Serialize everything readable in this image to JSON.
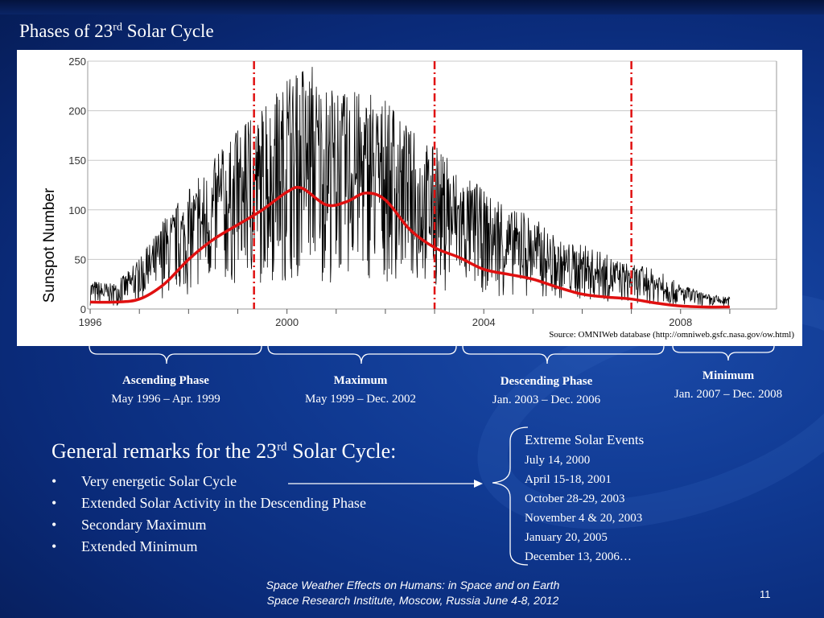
{
  "slide": {
    "title_prefix": "Phases of 23",
    "title_sup": "rd",
    "title_suffix": " Solar Cycle",
    "source": "Source: OMNIWeb database (http://omniweb.gsfc.nasa.gov/ow.html)",
    "page_number": "11"
  },
  "chart_data": {
    "type": "line",
    "ylabel": "Sunspot Number",
    "ylim": [
      0,
      250
    ],
    "xlim": [
      1995.95,
      2009.95
    ],
    "yticks": [
      0,
      50,
      100,
      150,
      200,
      250
    ],
    "ytick_labels": [
      "0",
      "50",
      "100",
      "150",
      "200",
      "250"
    ],
    "xticks": [
      1996,
      2000,
      2004,
      2008
    ],
    "xtick_labels": [
      "1996",
      "2000",
      "2004",
      "2008"
    ],
    "grid": "horizontal",
    "phase_boundaries": [
      1999.33,
      2003.0,
      2007.0
    ],
    "series": [
      {
        "name": "",
        "color": "#e01010",
        "style": "smoothed",
        "x": [
          1996.0,
          1996.5,
          1997.0,
          1997.5,
          1998.0,
          1998.5,
          1999.0,
          1999.5,
          2000.0,
          2000.3,
          2000.8,
          2001.2,
          2001.6,
          2002.0,
          2002.5,
          2003.0,
          2003.5,
          2004.0,
          2004.5,
          2005.0,
          2005.5,
          2006.0,
          2006.5,
          2007.0,
          2007.5,
          2008.0,
          2008.5,
          2009.0
        ],
        "values": [
          7,
          7,
          10,
          25,
          50,
          70,
          85,
          100,
          118,
          122,
          105,
          108,
          117,
          110,
          80,
          62,
          52,
          40,
          35,
          30,
          22,
          15,
          12,
          10,
          6,
          3,
          2,
          2
        ]
      },
      {
        "name": "",
        "color": "#000000",
        "style": "daily",
        "x_start": 1996.0,
        "x_end": 2009.0,
        "envelope_x": [
          1996.0,
          1996.5,
          1997.0,
          1997.5,
          1998.0,
          1998.5,
          1999.0,
          1999.5,
          2000.0,
          2000.5,
          2001.0,
          2001.5,
          2002.0,
          2002.5,
          2003.0,
          2003.5,
          2004.0,
          2004.5,
          2005.0,
          2005.5,
          2006.0,
          2006.5,
          2007.0,
          2007.5,
          2008.0,
          2008.5,
          2009.0
        ],
        "envelope_max": [
          30,
          25,
          50,
          90,
          120,
          150,
          180,
          200,
          230,
          245,
          215,
          220,
          210,
          180,
          165,
          140,
          120,
          100,
          95,
          70,
          65,
          55,
          45,
          40,
          25,
          15,
          12
        ]
      }
    ]
  },
  "phases": [
    {
      "name": "Ascending Phase",
      "dates": "May 1996 – Apr. 1999"
    },
    {
      "name": "Maximum",
      "dates": "May 1999 – Dec. 2002"
    },
    {
      "name": "Descending Phase",
      "dates": "Jan. 2003 – Dec. 2006"
    },
    {
      "name": "Minimum",
      "dates": "Jan. 2007 – Dec. 2008"
    }
  ],
  "remarks": {
    "title_prefix": "General remarks for the 23",
    "title_sup": "rd",
    "title_suffix": " Solar Cycle:",
    "bullet": "•",
    "items": [
      "Very energetic Solar Cycle",
      "Extended Solar Activity in the Descending Phase",
      "Secondary Maximum",
      "Extended Minimum"
    ]
  },
  "events": {
    "title": "Extreme Solar Events",
    "items": [
      "July 14, 2000",
      "April 15-18, 2001",
      "October 28-29, 2003",
      "November 4 & 20, 2003",
      "January 20, 2005",
      "December 13, 2006…"
    ]
  },
  "footer": {
    "line1": "Space Weather Effects on Humans: in Space and on Earth",
    "line2": "Space Research Institute, Moscow, Russia    June 4-8, 2012"
  }
}
